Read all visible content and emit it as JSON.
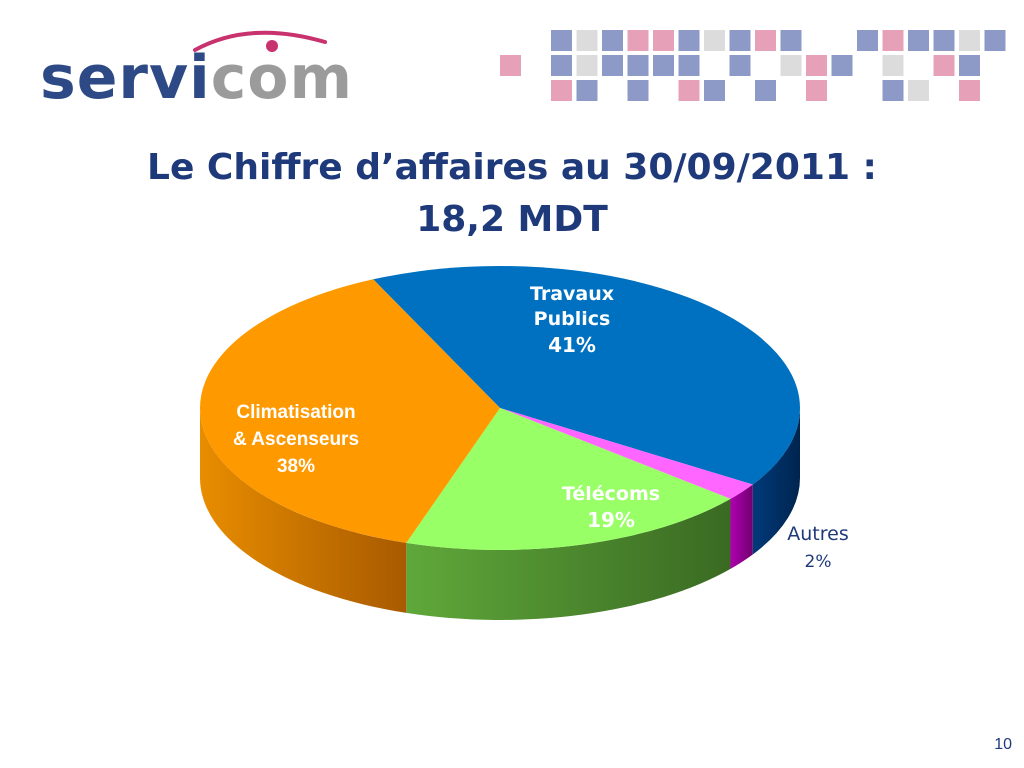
{
  "logo": {
    "part1": "servi",
    "part2": "com"
  },
  "title": {
    "line1": "Le Chiffre d’affaires au 30/09/2011 :",
    "line2": "18,2 MDT"
  },
  "colors": {
    "travaux": "#0070c0",
    "telecoms": "#99ff66",
    "autres": "#ff66ff",
    "climatisation": "#ff9900",
    "title": "#1f3a7a",
    "pattern_blue": "#8d99c6",
    "pattern_pink": "#e6a0b8",
    "pattern_gray": "#dcdcdc"
  },
  "chart_data": {
    "type": "pie",
    "title": "Le Chiffre d’affaires au 30/09/2011 : 18,2 MDT",
    "slices": [
      {
        "label": "Travaux Publics",
        "value": 41,
        "value_label": "41%"
      },
      {
        "label": "Autres",
        "value": 2,
        "value_label": "2%"
      },
      {
        "label": "Télécoms",
        "value": 19,
        "value_label": "19%"
      },
      {
        "label": "Climatisation & Ascenseurs",
        "value": 38,
        "value_label": "38%"
      }
    ],
    "style": "3d"
  },
  "labels": {
    "travaux": [
      "Travaux",
      "Publics",
      "41%"
    ],
    "telecoms": [
      "Télécoms",
      "19%"
    ],
    "autres": [
      "Autres",
      "2%"
    ],
    "climatisation": [
      "Climatisation",
      "& Ascenseurs",
      "38%"
    ]
  },
  "page_number": "10"
}
